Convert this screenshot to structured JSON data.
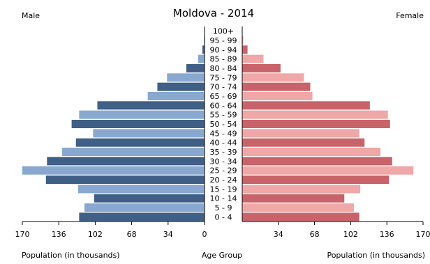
{
  "chart_data": {
    "type": "bar",
    "title": "Moldova - 2014",
    "left_label": "Male",
    "right_label": "Female",
    "xlabel_left": "Population (in thousands)",
    "xlabel_center": "Age Group",
    "xlabel_right": "Population (in thousands)",
    "xlim": [
      0,
      170
    ],
    "xticks": [
      170,
      136,
      102,
      68,
      34,
      0,
      34,
      68,
      102,
      136,
      170
    ],
    "categories": [
      "0 - 4",
      "5 - 9",
      "10 - 14",
      "15 - 19",
      "20 - 24",
      "25 - 29",
      "30 - 34",
      "35 - 39",
      "40 - 44",
      "45 - 49",
      "50 - 54",
      "55 - 59",
      "60 - 64",
      "65 - 69",
      "70 - 74",
      "75 - 79",
      "80 - 84",
      "85 - 89",
      "90 - 94",
      "95 - 99",
      "100+"
    ],
    "series": [
      {
        "name": "Male",
        "values": [
          117,
          112,
          103,
          118,
          148,
          170,
          147,
          133,
          120,
          104,
          124,
          117,
          100,
          53,
          44,
          35,
          17,
          6,
          2,
          0.5,
          0.2
        ]
      },
      {
        "name": "Female",
        "values": [
          110,
          105,
          96,
          111,
          138,
          161,
          141,
          130,
          115,
          110,
          139,
          137,
          120,
          66,
          64,
          58,
          36,
          20,
          5,
          1,
          0.3
        ]
      }
    ],
    "colors": {
      "male_dark": "#3f5f86",
      "male_light": "#88a8cf",
      "female_dark": "#c8636a",
      "female_light": "#f0a7a7",
      "axis": "#000000"
    },
    "grid": false,
    "legend": "none"
  }
}
